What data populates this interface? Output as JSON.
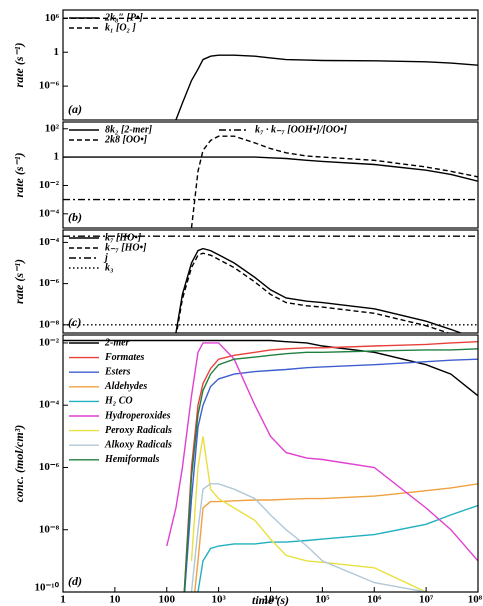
{
  "chart_data": [
    {
      "type": "line",
      "annotation": "(a)",
      "ylabel": "rate (s⁻¹)",
      "xscale": "log",
      "yscale": "log",
      "xlim": [
        1,
        100000000
      ],
      "ylim": [
        1e-12,
        30000000
      ],
      "yticks": [
        {
          "value": 1000000,
          "label": "10⁶"
        },
        1,
        {
          "value": 1e-06,
          "label": "10⁻⁶"
        }
      ],
      "legend": "upper left",
      "ncol": 1,
      "x": [
        1,
        10,
        100,
        150,
        200,
        300,
        400,
        500,
        700,
        1000,
        2000,
        5000,
        10000,
        20000,
        50000,
        100000,
        1000000,
        10000000,
        30000000,
        100000000
      ],
      "series": [
        {
          "name": "2k₈″ [P•]",
          "color": "#000000",
          "dash": "solid",
          "values": [
            null,
            null,
            null,
            1e-12,
            1e-09,
            1e-05,
            0.001,
            0.05,
            0.2,
            0.3,
            0.3,
            0.2,
            0.1,
            0.05,
            0.04,
            0.035,
            0.03,
            0.02,
            0.012,
            0.005
          ]
        },
        {
          "name": "k₁ [O₂ ]",
          "color": "#000000",
          "dash": "dashed",
          "values": [
            1000000,
            1000000,
            1000000,
            1000000,
            1000000,
            1000000,
            1000000,
            1000000,
            1000000,
            1000000,
            1000000,
            1000000,
            1000000,
            1000000,
            1000000,
            1000000,
            1000000,
            1000000,
            1000000,
            1000000
          ]
        }
      ]
    },
    {
      "type": "line",
      "annotation": "(b)",
      "ylabel": "rate (s⁻¹)",
      "xscale": "log",
      "yscale": "log",
      "xlim": [
        1,
        100000000
      ],
      "ylim": [
        1e-05,
        300
      ],
      "yticks": [
        {
          "value": 100,
          "label": "10²"
        },
        1,
        {
          "value": 0.01,
          "label": "10⁻²"
        },
        {
          "value": 0.0001,
          "label": "10⁻⁴"
        }
      ],
      "legend": "upper left",
      "ncol": 2,
      "x": [
        1,
        10,
        100,
        150,
        200,
        300,
        400,
        500,
        700,
        1000,
        2000,
        5000,
        10000,
        20000,
        50000,
        100000,
        1000000,
        10000000,
        30000000,
        100000000
      ],
      "series": [
        {
          "name": "8k₂ [2-mer]",
          "color": "#000000",
          "dash": "solid",
          "values": [
            1,
            1,
            1,
            1,
            1,
            1,
            1,
            1,
            1,
            1,
            1,
            1,
            0.9,
            0.8,
            0.6,
            0.5,
            0.3,
            0.12,
            0.06,
            0.02
          ]
        },
        {
          "name": "2k8 [OO•]",
          "color": "#000000",
          "dash": "dashed",
          "values": [
            null,
            null,
            null,
            null,
            null,
            1e-05,
            0.1,
            3,
            15,
            30,
            30,
            10,
            4,
            2,
            1.2,
            1,
            0.6,
            0.2,
            0.1,
            0.04
          ]
        },
        {
          "name": "k₇ · k₋₇  [OOH•]/[OO•]",
          "color": "#000000",
          "dash": "dashdot",
          "values": [
            0.001,
            0.001,
            0.001,
            0.001,
            0.001,
            0.001,
            0.001,
            0.001,
            0.001,
            0.001,
            0.001,
            0.001,
            0.001,
            0.001,
            0.001,
            0.001,
            0.001,
            0.001,
            0.001,
            0.001
          ]
        }
      ]
    },
    {
      "type": "line",
      "annotation": "(c)",
      "ylabel": "rate (s⁻¹)",
      "xscale": "log",
      "yscale": "log",
      "xlim": [
        1,
        100000000
      ],
      "ylim": [
        4e-09,
        0.0004
      ],
      "yticks": [
        {
          "value": 0.0001,
          "label": "10⁻⁴"
        },
        {
          "value": 1e-06,
          "label": "10⁻⁶"
        },
        {
          "value": 1e-08,
          "label": "10⁻⁸"
        }
      ],
      "legend": "upper left",
      "ncol": 1,
      "x": [
        1,
        10,
        100,
        150,
        200,
        300,
        400,
        500,
        700,
        1000,
        2000,
        5000,
        10000,
        20000,
        50000,
        100000,
        1000000,
        10000000,
        30000000,
        100000000
      ],
      "series": [
        {
          "name": "k₇ [HO•]",
          "color": "#000000",
          "dash": "solid",
          "values": [
            null,
            null,
            null,
            4e-09,
            3e-07,
            1e-05,
            4e-05,
            5e-05,
            4e-05,
            2.5e-05,
            1e-05,
            2e-06,
            5e-07,
            2e-07,
            1.4e-07,
            1.2e-07,
            6e-08,
            1.5e-08,
            6e-09,
            2e-09
          ]
        },
        {
          "name": "k₋₇ [HO•]",
          "color": "#000000",
          "dash": "dashed",
          "values": [
            null,
            null,
            null,
            2.5e-09,
            1.8e-07,
            6e-06,
            2.4e-05,
            3e-05,
            2.4e-05,
            1.5e-05,
            6e-06,
            1.2e-06,
            3e-07,
            1.2e-07,
            8.4e-08,
            7.2e-08,
            3.6e-08,
            9e-09,
            3.6e-09,
            1.2e-09
          ]
        },
        {
          "name": "j",
          "color": "#000000",
          "dash": "dashdot",
          "values": [
            0.0002,
            0.0002,
            0.0002,
            0.0002,
            0.0002,
            0.0002,
            0.0002,
            0.0002,
            0.0002,
            0.0002,
            0.0002,
            0.0002,
            0.0002,
            0.0002,
            0.0002,
            0.0002,
            0.0002,
            0.0002,
            0.0002,
            0.0002
          ]
        },
        {
          "name": "k₃",
          "color": "#000000",
          "dash": "dotted",
          "values": [
            1e-08,
            1e-08,
            1e-08,
            1e-08,
            1e-08,
            1e-08,
            1e-08,
            1e-08,
            1e-08,
            1e-08,
            1e-08,
            1e-08,
            1e-08,
            1e-08,
            1e-08,
            1e-08,
            1e-08,
            1e-08,
            1e-08,
            1e-08
          ]
        }
      ]
    },
    {
      "type": "line",
      "annotation": "(d)",
      "ylabel": "conc. (mol/cm³)",
      "xlabel": "time (s)",
      "xscale": "log",
      "yscale": "log",
      "xlim": [
        1,
        100000000
      ],
      "ylim": [
        1e-10,
        0.018
      ],
      "xticks": [
        1,
        10,
        100,
        {
          "value": 1000,
          "label": "10³"
        },
        {
          "value": 10000,
          "label": "10⁴"
        },
        {
          "value": 100000,
          "label": "10⁵"
        },
        {
          "value": 1000000,
          "label": "10⁶"
        },
        {
          "value": 10000000,
          "label": "10⁷"
        },
        {
          "value": 100000000,
          "label": "10⁸"
        }
      ],
      "yticks": [
        {
          "value": 0.01,
          "label": "10⁻²"
        },
        {
          "value": 0.0001,
          "label": "10⁻⁴"
        },
        {
          "value": 1e-06,
          "label": "10⁻⁶"
        },
        {
          "value": 1e-08,
          "label": "10⁻⁸"
        },
        {
          "value": 1e-10,
          "label": "10⁻¹⁰"
        }
      ],
      "legend": "upper left",
      "ncol": 1,
      "x": [
        1,
        10,
        100,
        150,
        200,
        300,
        400,
        500,
        700,
        1000,
        2000,
        5000,
        10000,
        20000,
        50000,
        100000,
        1000000,
        10000000,
        30000000,
        100000000
      ],
      "series": [
        {
          "name": "2-mer",
          "color": "#000000",
          "dash": "solid",
          "values": [
            0.012,
            0.012,
            0.012,
            0.012,
            0.012,
            0.012,
            0.012,
            0.012,
            0.012,
            0.012,
            0.012,
            0.012,
            0.012,
            0.011,
            0.01,
            0.008,
            0.005,
            0.002,
            0.001,
            0.0002
          ]
        },
        {
          "name": "Formates",
          "color": "#e8413a",
          "dash": "solid",
          "values": [
            null,
            null,
            null,
            null,
            1e-11,
            1e-06,
            0.0001,
            0.0005,
            0.0015,
            0.003,
            0.004,
            0.005,
            0.006,
            0.0065,
            0.007,
            0.007,
            0.008,
            0.009,
            0.01,
            0.011
          ]
        },
        {
          "name": "Esters",
          "color": "#3f5fd0",
          "dash": "solid",
          "values": [
            null,
            null,
            null,
            null,
            1e-11,
            1e-07,
            2e-05,
            0.0001,
            0.0004,
            0.0007,
            0.001,
            0.0012,
            0.0013,
            0.0014,
            0.0016,
            0.0017,
            0.002,
            0.0025,
            0.0028,
            0.003
          ]
        },
        {
          "name": "Aldehydes",
          "color": "#f0a040",
          "dash": "solid",
          "values": [
            null,
            null,
            null,
            null,
            null,
            1e-11,
            1e-09,
            5e-08,
            8e-08,
            8e-08,
            8.5e-08,
            9e-08,
            9e-08,
            9.5e-08,
            1e-07,
            1e-07,
            1.2e-07,
            1.8e-07,
            2.2e-07,
            3e-07
          ]
        },
        {
          "name": "H₂ CO",
          "color": "#20b0c0",
          "dash": "solid",
          "values": [
            null,
            null,
            null,
            null,
            null,
            1e-11,
            1e-10,
            1e-09,
            2.5e-09,
            3e-09,
            3.5e-09,
            3.5e-09,
            4e-09,
            4e-09,
            4.5e-09,
            5e-09,
            7e-09,
            1.5e-08,
            3e-08,
            6e-08
          ]
        },
        {
          "name": "Hydroperoxides",
          "color": "#e040d0",
          "dash": "solid",
          "values": [
            null,
            null,
            3e-09,
            5e-08,
            1e-06,
            0.0002,
            0.005,
            0.01,
            0.01,
            0.01,
            0.003,
            0.0001,
            1e-05,
            3e-06,
            2e-06,
            1.8e-06,
            1e-06,
            5e-08,
            1e-08,
            1e-09
          ]
        },
        {
          "name": "Peroxy Radicals",
          "color": "#e8e040",
          "dash": "solid",
          "values": [
            null,
            null,
            null,
            null,
            null,
            1e-09,
            1e-06,
            1e-05,
            2e-07,
            1e-07,
            5e-08,
            2e-08,
            5e-09,
            1.5e-09,
            1e-09,
            9e-10,
            6e-10,
            1e-10,
            null,
            null
          ]
        },
        {
          "name": "Alkoxy Radicals",
          "color": "#b0c8d8",
          "dash": "solid",
          "values": [
            null,
            null,
            null,
            null,
            null,
            1e-10,
            1e-08,
            2e-07,
            3e-07,
            3e-07,
            2e-07,
            1e-07,
            3e-08,
            1e-08,
            3e-09,
            1e-09,
            2e-10,
            1e-10,
            null,
            null
          ]
        },
        {
          "name": "Hemiformals",
          "color": "#208040",
          "dash": "solid",
          "values": [
            null,
            null,
            null,
            null,
            1e-11,
            5e-07,
            5e-05,
            0.0003,
            0.001,
            0.002,
            0.003,
            0.0035,
            0.004,
            0.0045,
            0.005,
            0.005,
            0.0055,
            0.006,
            0.006,
            0.0065
          ]
        }
      ]
    }
  ]
}
